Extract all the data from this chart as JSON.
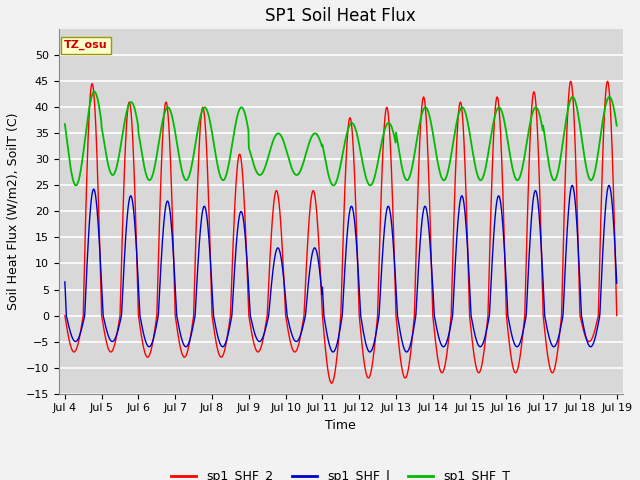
{
  "title": "SP1 Soil Heat Flux",
  "ylabel": "Soil Heat Flux (W/m2), SoilT (C)",
  "xlabel": "Time",
  "xlim_days": [
    3.83,
    19.17
  ],
  "ylim": [
    -15,
    55
  ],
  "yticks": [
    -15,
    -10,
    -5,
    0,
    5,
    10,
    15,
    20,
    25,
    30,
    35,
    40,
    45,
    50
  ],
  "xtick_labels": [
    "Jul 4",
    "Jul 5",
    "Jul 6",
    "Jul 7",
    "Jul 8",
    "Jul 9",
    "Jul 10",
    "Jul 11",
    "Jul 12",
    "Jul 13",
    "Jul 14",
    "Jul 15",
    "Jul 16",
    "Jul 17",
    "Jul 18",
    "Jul 19"
  ],
  "xtick_positions": [
    4,
    5,
    6,
    7,
    8,
    9,
    10,
    11,
    12,
    13,
    14,
    15,
    16,
    17,
    18,
    19
  ],
  "color_shf2": "#FF0000",
  "color_shf1": "#0000CC",
  "color_shfT": "#00BB00",
  "legend_labels": [
    "sp1_SHF_2",
    "sp1_SHF_l",
    "sp1_SHF_T"
  ],
  "watermark_text": "TZ_osu",
  "watermark_fgcolor": "#CC0000",
  "watermark_bgcolor": "#FFFFCC",
  "plot_bgcolor": "#D8D8D8",
  "fig_bgcolor": "#F2F2F2",
  "grid_color": "#FFFFFF",
  "title_fontsize": 12,
  "label_fontsize": 9,
  "tick_fontsize": 8,
  "legend_fontsize": 9
}
